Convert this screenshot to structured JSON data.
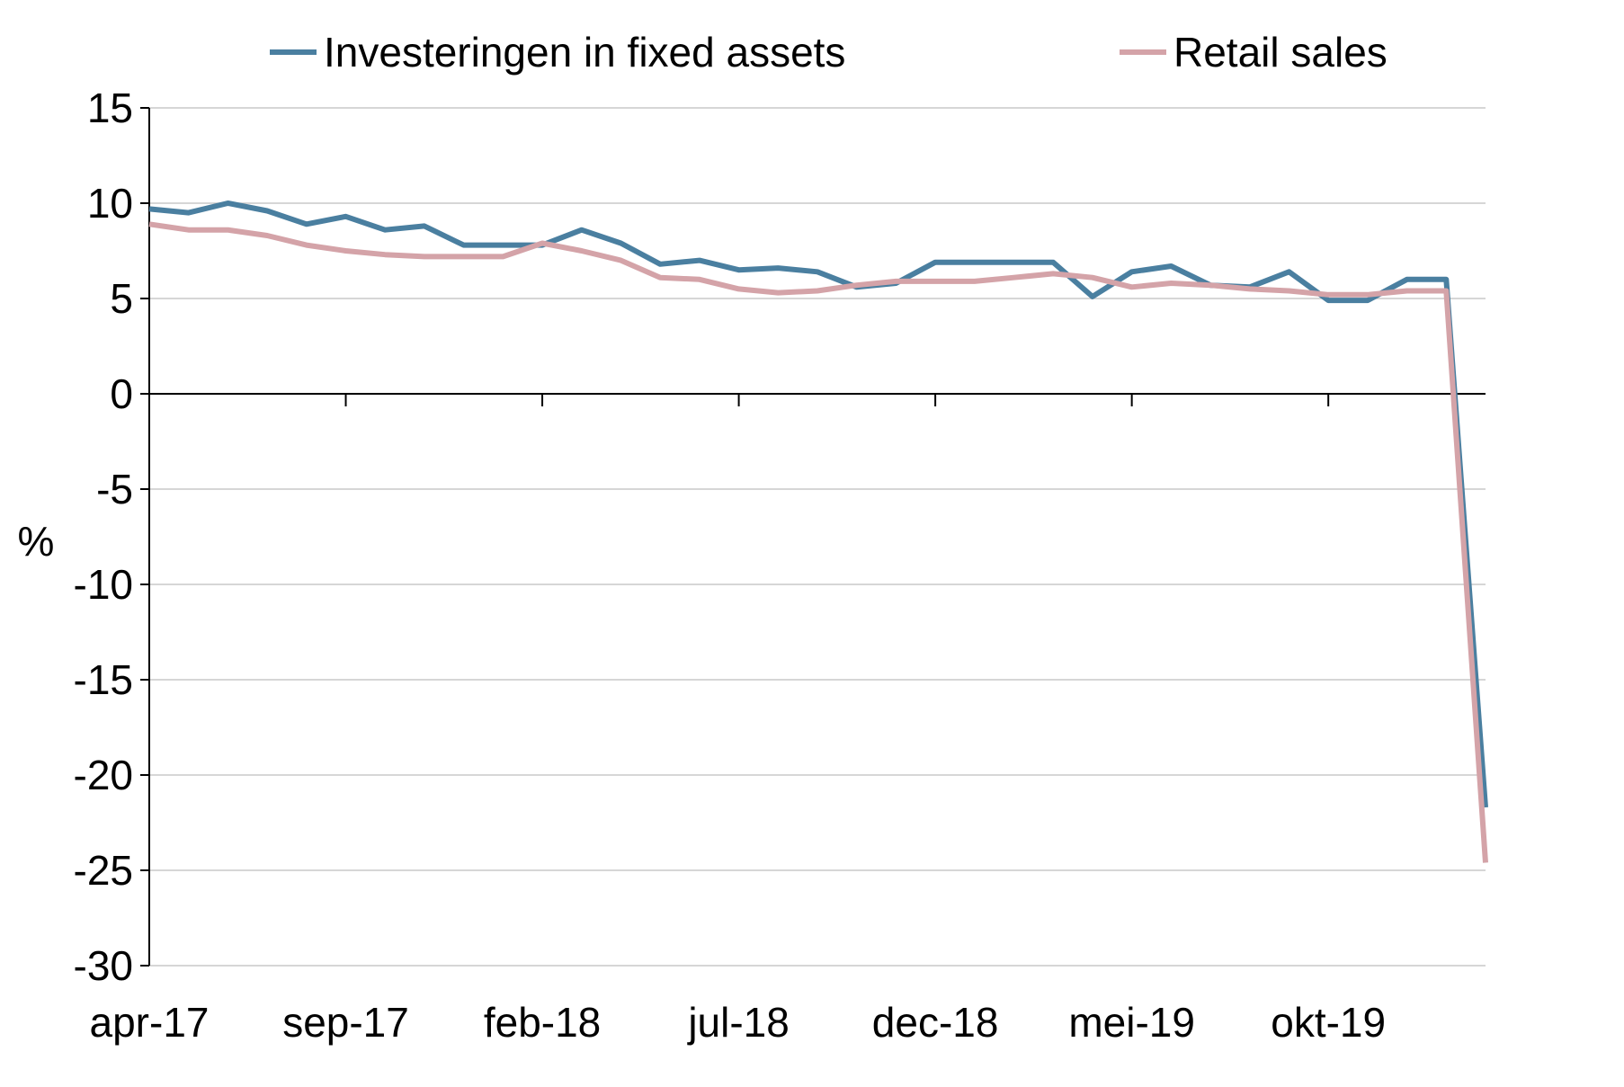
{
  "chart_data": {
    "type": "line",
    "title": "",
    "xlabel": "",
    "ylabel": "%",
    "ylim": [
      -30,
      15
    ],
    "yticks": [
      15,
      10,
      5,
      0,
      -5,
      -10,
      -15,
      -20,
      -25,
      -30
    ],
    "ytick_labels": [
      "15",
      "10",
      "5",
      "0",
      "-5",
      "-10",
      "-15",
      "-20",
      "-25",
      "-30"
    ],
    "x": [
      "apr-17",
      "mei-17",
      "jun-17",
      "jul-17",
      "aug-17",
      "sep-17",
      "okt-17",
      "nov-17",
      "dec-17",
      "jan-18",
      "feb-18",
      "mrt-18",
      "apr-18",
      "mei-18",
      "jun-18",
      "jul-18",
      "aug-18",
      "sep-18",
      "okt-18",
      "nov-18",
      "dec-18",
      "jan-19",
      "feb-19",
      "mrt-19",
      "apr-19",
      "mei-19",
      "jun-19",
      "jul-19",
      "aug-19",
      "sep-19",
      "okt-19",
      "nov-19",
      "dec-19",
      "jan-20",
      "feb-20"
    ],
    "xtick_labels": [
      "apr-17",
      "sep-17",
      "feb-18",
      "jul-18",
      "dec-18",
      "mei-19",
      "okt-19"
    ],
    "xtick_indices": [
      0,
      5,
      10,
      15,
      20,
      25,
      30
    ],
    "grid": "horizontal",
    "legend_position": "top",
    "series": [
      {
        "name": "Investeringen in fixed assets",
        "color": "#4a7fa0",
        "values": [
          9.7,
          9.5,
          10.0,
          9.6,
          8.9,
          9.3,
          8.6,
          8.8,
          7.8,
          7.8,
          7.8,
          8.6,
          7.9,
          6.8,
          7.0,
          6.5,
          6.6,
          6.4,
          5.6,
          5.8,
          6.9,
          6.9,
          6.9,
          6.9,
          5.1,
          6.4,
          6.7,
          5.7,
          5.6,
          6.4,
          4.9,
          4.9,
          6.0,
          6.0,
          -21.7
        ]
      },
      {
        "name": "Retail sales",
        "color": "#d4a3a8",
        "values": [
          8.9,
          8.6,
          8.6,
          8.3,
          7.8,
          7.5,
          7.3,
          7.2,
          7.2,
          7.2,
          7.9,
          7.5,
          7.0,
          6.1,
          6.0,
          5.5,
          5.3,
          5.4,
          5.7,
          5.9,
          5.9,
          5.9,
          6.1,
          6.3,
          6.1,
          5.6,
          5.8,
          5.7,
          5.5,
          5.4,
          5.2,
          5.2,
          5.4,
          5.4,
          -24.6
        ]
      }
    ]
  }
}
